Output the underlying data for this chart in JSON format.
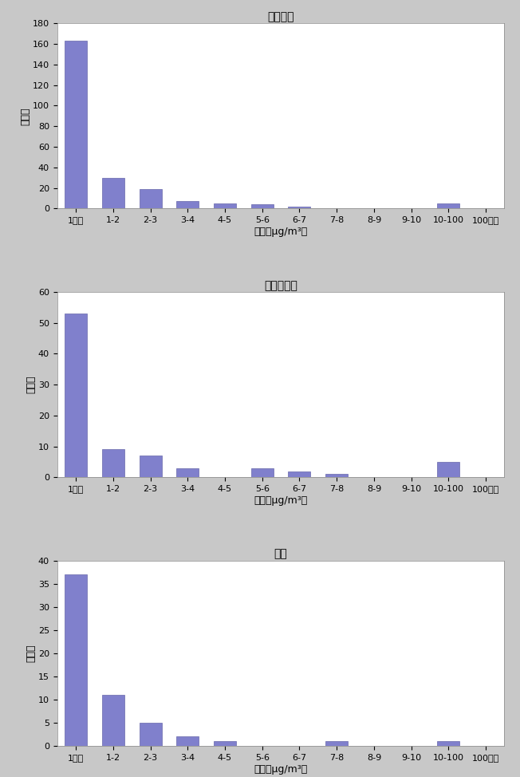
{
  "charts": [
    {
      "title": "一般環境",
      "values": [
        163,
        30,
        19,
        7,
        5,
        4,
        2,
        0,
        0,
        0,
        5,
        0
      ],
      "ylim": [
        0,
        180
      ],
      "yticks": [
        0,
        20,
        40,
        60,
        80,
        100,
        120,
        140,
        160,
        180
      ]
    },
    {
      "title": "発生源周辺",
      "values": [
        53,
        9,
        7,
        3,
        0,
        3,
        2,
        1,
        0,
        0,
        5,
        0
      ],
      "ylim": [
        0,
        60
      ],
      "yticks": [
        0,
        10,
        20,
        30,
        40,
        50,
        60
      ]
    },
    {
      "title": "沿道",
      "values": [
        37,
        11,
        5,
        2,
        1,
        0,
        0,
        1,
        0,
        0,
        1,
        0
      ],
      "ylim": [
        0,
        40
      ],
      "yticks": [
        0,
        5,
        10,
        15,
        20,
        25,
        30,
        35,
        40
      ]
    }
  ],
  "categories": [
    "1未満",
    "1-2",
    "2-3",
    "3-4",
    "4-5",
    "5-6",
    "6-7",
    "7-8",
    "8-9",
    "9-10",
    "10-100",
    "100以上"
  ],
  "bar_color": "#8080cc",
  "bar_edge_color": "#6666aa",
  "xlabel": "濃度（μg/m³）",
  "ylabel": "地点数",
  "plot_bg": "#ffffff",
  "fig_bg": "#c8c8c8",
  "title_fontsize": 10,
  "label_fontsize": 9,
  "tick_fontsize": 8
}
